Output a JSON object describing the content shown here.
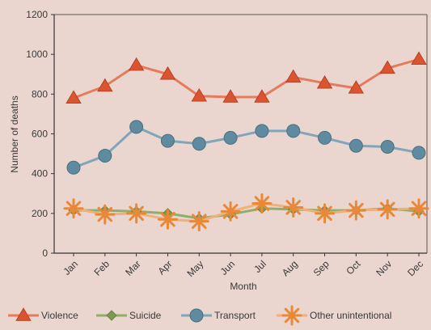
{
  "chart_data": {
    "type": "line",
    "title": "",
    "xlabel": "Month",
    "ylabel": "Number of deaths",
    "ylim": [
      0,
      1200
    ],
    "yticks": [
      0,
      200,
      400,
      600,
      800,
      1000,
      1200
    ],
    "categories": [
      "Jan",
      "Feb",
      "Mar",
      "Apr",
      "May",
      "Jun",
      "Jul",
      "Aug",
      "Sep",
      "Oct",
      "Nov",
      "Dec"
    ],
    "grid": false,
    "legend_position": "bottom",
    "series": [
      {
        "name": "Violence",
        "marker": "triangle",
        "color": "#d9542f",
        "line_color": "#e87a5c",
        "values": [
          780,
          840,
          945,
          900,
          790,
          785,
          785,
          885,
          855,
          830,
          930,
          975
        ]
      },
      {
        "name": "Suicide",
        "marker": "diamond",
        "color": "#7a9a52",
        "line_color": "#8fae68",
        "values": [
          215,
          215,
          210,
          200,
          175,
          195,
          225,
          220,
          215,
          215,
          225,
          210
        ]
      },
      {
        "name": "Transport",
        "marker": "circle",
        "color": "#5f8aa0",
        "line_color": "#7fa6bb",
        "values": [
          430,
          490,
          635,
          565,
          550,
          580,
          615,
          615,
          580,
          540,
          535,
          505
        ]
      },
      {
        "name": "Other unintentional",
        "marker": "star",
        "color": "#e8893a",
        "line_color": "#f0b07a",
        "values": [
          225,
          195,
          200,
          170,
          160,
          210,
          250,
          230,
          200,
          215,
          220,
          225
        ]
      }
    ]
  }
}
